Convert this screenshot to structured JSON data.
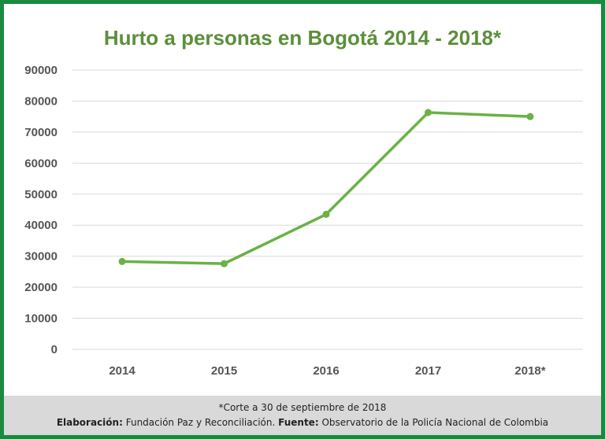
{
  "chart_data": {
    "type": "line",
    "title": "Hurto a personas en Bogotá 2014 - 2018*",
    "categories": [
      "2014",
      "2015",
      "2016",
      "2017",
      "2018*"
    ],
    "values": [
      28300,
      27600,
      43500,
      76300,
      75000
    ],
    "ylim": [
      0,
      90000
    ],
    "yticks": [
      "0",
      "10000",
      "20000",
      "30000",
      "40000",
      "50000",
      "60000",
      "70000",
      "80000",
      "90000"
    ],
    "grid": true,
    "line_color": "#6ab245",
    "title_color": "#5b8f3a",
    "border_color": "#1a8a3e"
  },
  "footer": {
    "note": "*Corte a 30 de septiembre de 2018",
    "elaboracion_label": "Elaboración:",
    "elaboracion_value": "Fundación Paz y Reconciliación.",
    "fuente_label": "Fuente:",
    "fuente_value": "Observatorio de la Policía Nacional de Colombia"
  }
}
